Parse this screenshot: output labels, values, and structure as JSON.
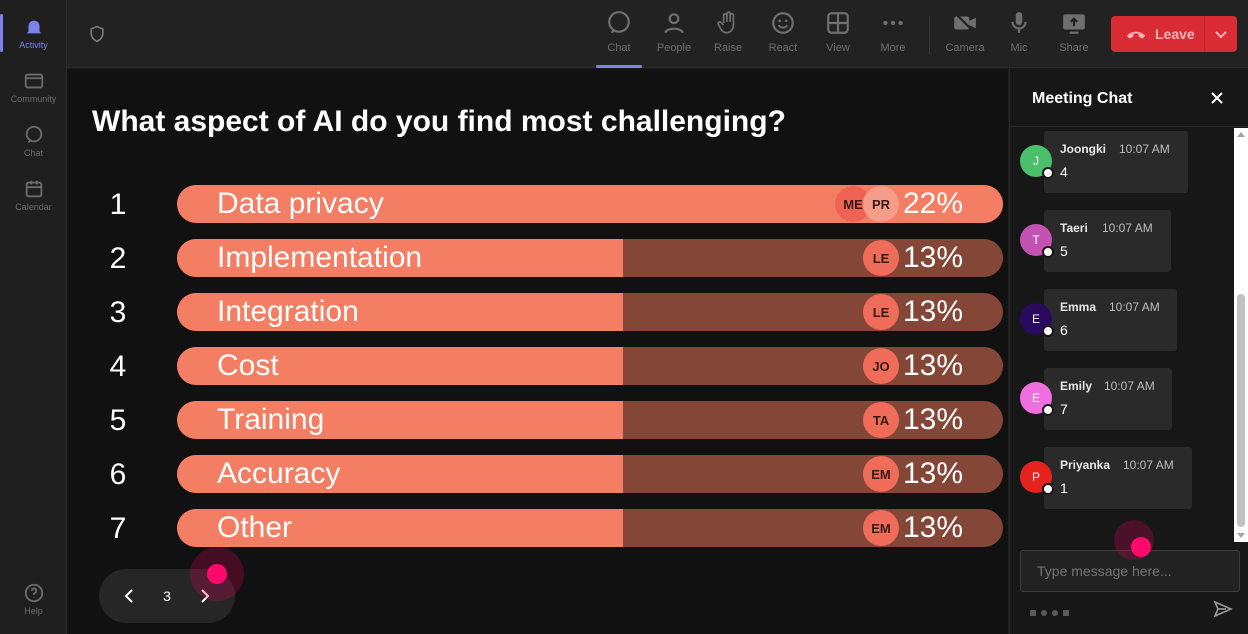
{
  "rail": {
    "items": [
      {
        "label": "Activity",
        "icon": "bell-icon",
        "active": true
      },
      {
        "label": "Community",
        "icon": "community-icon",
        "active": false
      },
      {
        "label": "Chat",
        "icon": "chat-icon",
        "active": false
      },
      {
        "label": "Calendar",
        "icon": "calendar-icon",
        "active": false
      }
    ],
    "help": {
      "label": "Help",
      "icon": "help-icon"
    }
  },
  "toolbar": {
    "buttons": [
      {
        "label": "Chat",
        "icon": "chat-icon",
        "active": true
      },
      {
        "label": "People",
        "icon": "people-icon",
        "active": false
      },
      {
        "label": "Raise",
        "icon": "raise-hand-icon",
        "active": false
      },
      {
        "label": "React",
        "icon": "smiley-icon",
        "active": false
      },
      {
        "label": "View",
        "icon": "grid-icon",
        "active": false
      },
      {
        "label": "More",
        "icon": "more-icon",
        "active": false
      },
      {
        "label": "Camera",
        "icon": "camera-off-icon",
        "active": false
      },
      {
        "label": "Mic",
        "icon": "mic-icon",
        "active": false
      },
      {
        "label": "Share",
        "icon": "share-icon",
        "active": false
      }
    ],
    "leave_label": "Leave",
    "leave_color": "#d92c35"
  },
  "poll": {
    "question": "What aspect of AI do you find most challenging?",
    "options": [
      {
        "rank": "1",
        "label": "Data privacy",
        "percent": "22%",
        "fraction": 1.0,
        "avatars": [
          "ME",
          "PR"
        ]
      },
      {
        "rank": "2",
        "label": "Implementation",
        "percent": "13%",
        "fraction": 0.54,
        "avatars": [
          "LE"
        ]
      },
      {
        "rank": "3",
        "label": "Integration",
        "percent": "13%",
        "fraction": 0.54,
        "avatars": [
          "LE"
        ]
      },
      {
        "rank": "4",
        "label": "Cost",
        "percent": "13%",
        "fraction": 0.54,
        "avatars": [
          "JO"
        ]
      },
      {
        "rank": "5",
        "label": "Training",
        "percent": "13%",
        "fraction": 0.54,
        "avatars": [
          "TA"
        ]
      },
      {
        "rank": "6",
        "label": "Accuracy",
        "percent": "13%",
        "fraction": 0.54,
        "avatars": [
          "EM"
        ]
      },
      {
        "rank": "7",
        "label": "Other",
        "percent": "13%",
        "fraction": 0.54,
        "avatars": [
          "EM"
        ]
      }
    ],
    "bar_color": "#f47e63",
    "bar_track_color": "#844637"
  },
  "pager": {
    "page": "3"
  },
  "chat": {
    "title": "Meeting Chat",
    "messages": [
      {
        "initial": "J",
        "name": "Joongki",
        "time": "10:07 AM",
        "text": "4",
        "color": "#4cbf6b"
      },
      {
        "initial": "T",
        "name": "Taeri",
        "time": "10:07 AM",
        "text": "5",
        "color": "#c452b3"
      },
      {
        "initial": "E",
        "name": "Emma",
        "time": "10:07 AM",
        "text": "6",
        "color": "#2a0a5e"
      },
      {
        "initial": "E",
        "name": "Emily",
        "time": "10:07 AM",
        "text": "7",
        "color": "#ef6ee0"
      },
      {
        "initial": "P",
        "name": "Priyanka",
        "time": "10:07 AM",
        "text": "1",
        "color": "#e5231c"
      }
    ],
    "input_placeholder": "Type message here..."
  }
}
